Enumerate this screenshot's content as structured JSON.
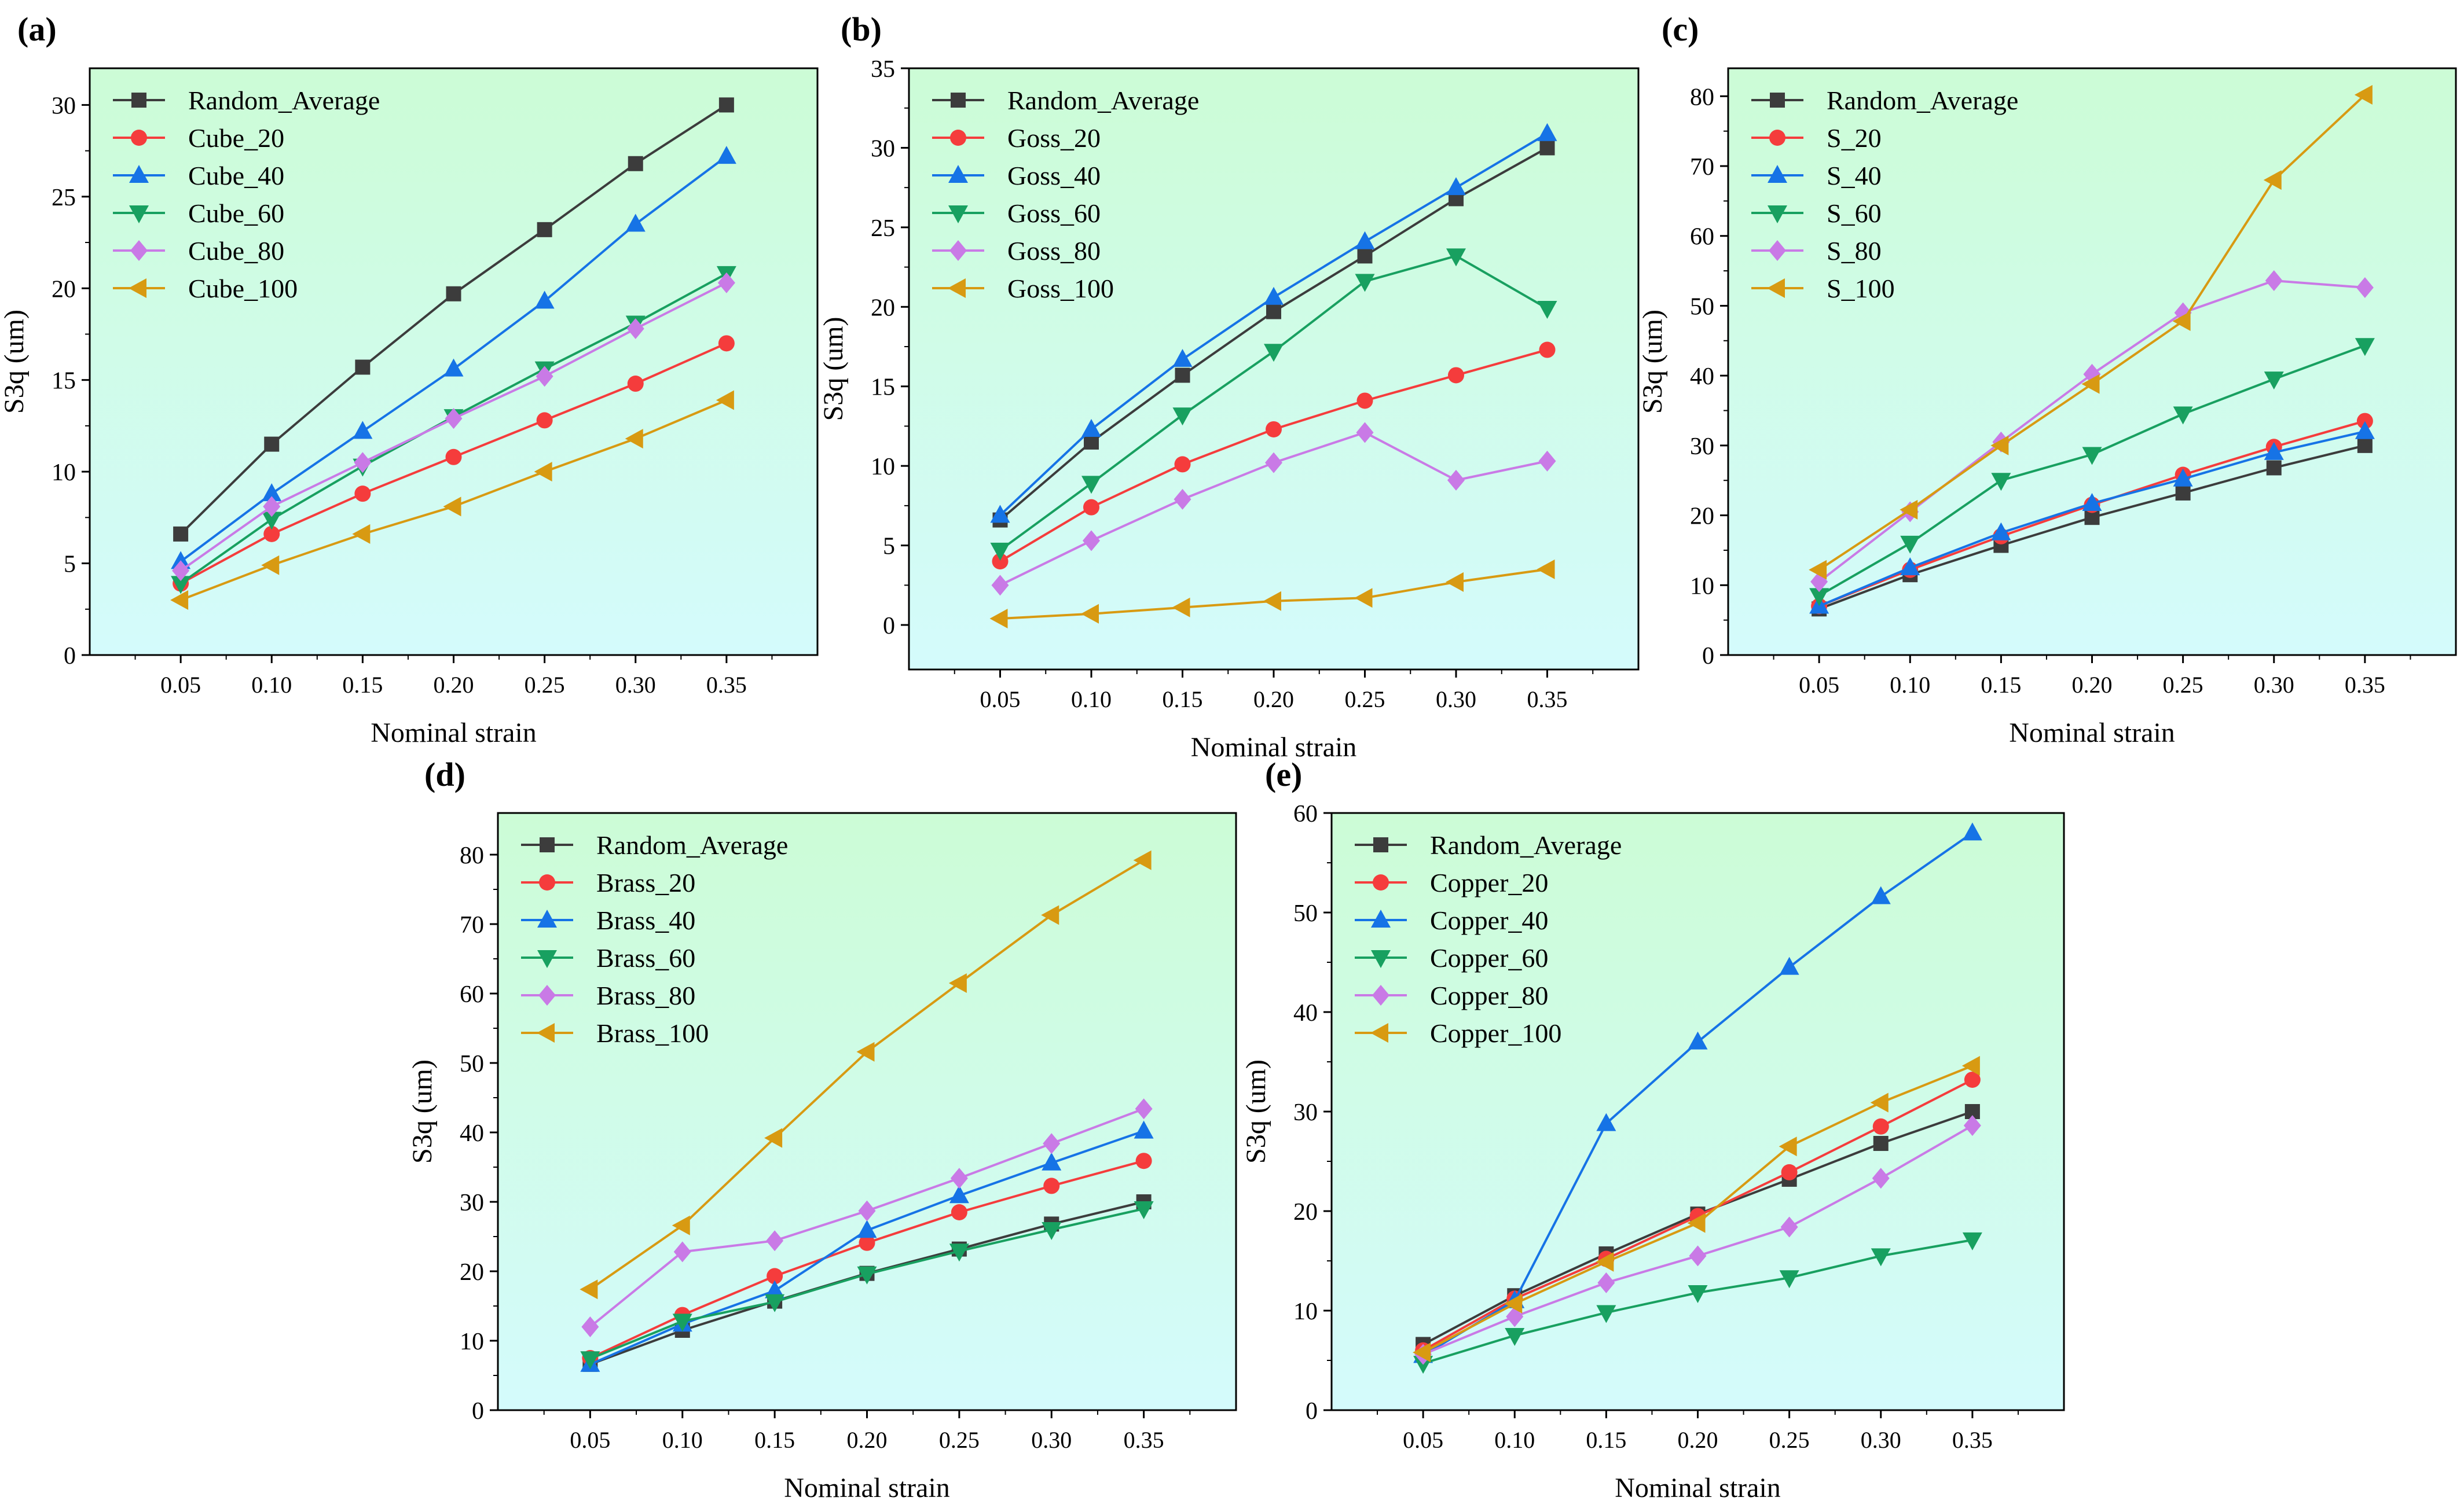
{
  "figure": {
    "series_colors": [
      "#3c3c3c",
      "#f53c3c",
      "#1673e6",
      "#18a060",
      "#c97ae6",
      "#d89a12"
    ],
    "marker_shapes": [
      "square",
      "circle",
      "triangle-up",
      "triangle-down",
      "diamond",
      "triangle-left"
    ]
  },
  "chart_data": [
    {
      "panel_label": "(a)",
      "type": "line",
      "xlabel": "Nominal strain",
      "ylabel": "S3q (um)",
      "x": [
        0.05,
        0.1,
        0.15,
        0.2,
        0.25,
        0.3,
        0.35
      ],
      "x_tick_labels": [
        "0.05",
        "0.10",
        "0.15",
        "0.20",
        "0.25",
        "0.30",
        "0.35"
      ],
      "xlim": [
        0.0,
        0.4
      ],
      "ylim": [
        0,
        32
      ],
      "y_ticks": [
        0,
        5,
        10,
        15,
        20,
        25,
        30
      ],
      "legend_position": "top-left",
      "series": [
        {
          "name": "Random_Average",
          "values": [
            6.6,
            11.5,
            15.7,
            19.7,
            23.2,
            26.8,
            30.0
          ]
        },
        {
          "name": "Cube_20",
          "values": [
            3.9,
            6.6,
            8.8,
            10.8,
            12.8,
            14.8,
            17.0
          ]
        },
        {
          "name": "Cube_40",
          "values": [
            5.1,
            8.8,
            12.2,
            15.6,
            19.3,
            23.5,
            27.2
          ]
        },
        {
          "name": "Cube_60",
          "values": [
            3.9,
            7.4,
            10.3,
            13.0,
            15.6,
            18.1,
            20.8
          ]
        },
        {
          "name": "Cube_80",
          "values": [
            4.6,
            8.1,
            10.5,
            12.9,
            15.2,
            17.8,
            20.3
          ]
        },
        {
          "name": "Cube_100",
          "values": [
            3.0,
            4.9,
            6.6,
            8.1,
            10.0,
            11.8,
            13.9
          ]
        }
      ]
    },
    {
      "panel_label": "(b)",
      "type": "line",
      "xlabel": "Nominal strain",
      "ylabel": "S3q (um)",
      "x": [
        0.05,
        0.1,
        0.15,
        0.2,
        0.25,
        0.3,
        0.35
      ],
      "x_tick_labels": [
        "0.05",
        "0.10",
        "0.15",
        "0.20",
        "0.25",
        "0.30",
        "0.35"
      ],
      "xlim": [
        0.0,
        0.4
      ],
      "ylim": [
        -2.8,
        35
      ],
      "y_ticks": [
        0,
        5,
        10,
        15,
        20,
        25,
        30,
        35
      ],
      "legend_position": "top-left",
      "series": [
        {
          "name": "Random_Average",
          "values": [
            6.6,
            11.5,
            15.7,
            19.7,
            23.2,
            26.8,
            30.0
          ]
        },
        {
          "name": "Goss_20",
          "values": [
            4.0,
            7.4,
            10.1,
            12.3,
            14.1,
            15.7,
            17.3
          ]
        },
        {
          "name": "Goss_40",
          "values": [
            6.9,
            12.3,
            16.7,
            20.6,
            24.1,
            27.5,
            30.9
          ]
        },
        {
          "name": "Goss_60",
          "values": [
            4.7,
            8.9,
            13.2,
            17.2,
            21.6,
            23.2,
            19.9
          ]
        },
        {
          "name": "Goss_80",
          "values": [
            2.5,
            5.3,
            7.9,
            10.2,
            12.1,
            9.1,
            10.3
          ]
        },
        {
          "name": "Goss_100",
          "values": [
            0.4,
            0.7,
            1.1,
            1.5,
            1.7,
            2.7,
            3.5
          ]
        }
      ]
    },
    {
      "panel_label": "(c)",
      "type": "line",
      "xlabel": "Nominal strain",
      "ylabel": "S3q (um)",
      "x": [
        0.05,
        0.1,
        0.15,
        0.2,
        0.25,
        0.3,
        0.35
      ],
      "x_tick_labels": [
        "0.05",
        "0.10",
        "0.15",
        "0.20",
        "0.25",
        "0.30",
        "0.35"
      ],
      "xlim": [
        0.0,
        0.4
      ],
      "ylim": [
        0,
        84
      ],
      "y_ticks": [
        0,
        10,
        20,
        30,
        40,
        50,
        60,
        70,
        80
      ],
      "legend_position": "top-left",
      "series": [
        {
          "name": "Random_Average",
          "values": [
            6.6,
            11.5,
            15.7,
            19.7,
            23.2,
            26.8,
            30.0
          ]
        },
        {
          "name": "S_20",
          "values": [
            7.0,
            12.2,
            17.0,
            21.5,
            25.8,
            29.8,
            33.5
          ]
        },
        {
          "name": "S_40",
          "values": [
            7.0,
            12.5,
            17.5,
            21.7,
            25.2,
            29.0,
            32.0
          ]
        },
        {
          "name": "S_60",
          "values": [
            8.5,
            16.0,
            25.0,
            28.7,
            34.5,
            39.5,
            44.3
          ]
        },
        {
          "name": "S_80",
          "values": [
            10.5,
            20.5,
            30.5,
            40.2,
            49.0,
            53.6,
            52.6
          ]
        },
        {
          "name": "S_100",
          "values": [
            12.2,
            20.8,
            30.0,
            38.8,
            47.8,
            68.0,
            80.2
          ]
        }
      ]
    },
    {
      "panel_label": "(d)",
      "type": "line",
      "xlabel": "Nominal strain",
      "ylabel": "S3q (um)",
      "x": [
        0.05,
        0.1,
        0.15,
        0.2,
        0.25,
        0.3,
        0.35
      ],
      "x_tick_labels": [
        "0.05",
        "0.10",
        "0.15",
        "0.20",
        "0.25",
        "0.30",
        "0.35"
      ],
      "xlim": [
        0.0,
        0.4
      ],
      "ylim": [
        0,
        86
      ],
      "y_ticks": [
        0,
        10,
        20,
        30,
        40,
        50,
        60,
        70,
        80
      ],
      "legend_position": "top-left",
      "series": [
        {
          "name": "Random_Average",
          "values": [
            6.6,
            11.5,
            15.7,
            19.7,
            23.2,
            26.8,
            30.0
          ]
        },
        {
          "name": "Brass_20",
          "values": [
            7.5,
            13.7,
            19.3,
            24.1,
            28.5,
            32.3,
            35.9
          ]
        },
        {
          "name": "Brass_40",
          "values": [
            6.6,
            12.4,
            17.2,
            25.9,
            30.9,
            35.6,
            40.2
          ]
        },
        {
          "name": "Brass_60",
          "values": [
            7.4,
            12.8,
            15.6,
            19.6,
            22.9,
            26.0,
            29.0
          ]
        },
        {
          "name": "Brass_80",
          "values": [
            12.0,
            22.8,
            24.4,
            28.7,
            33.4,
            38.4,
            43.4
          ]
        },
        {
          "name": "Brass_100",
          "values": [
            17.4,
            26.6,
            39.2,
            51.6,
            61.5,
            71.3,
            79.2
          ]
        }
      ]
    },
    {
      "panel_label": "(e)",
      "type": "line",
      "xlabel": "Nominal strain",
      "ylabel": "S3q (um)",
      "x": [
        0.05,
        0.1,
        0.15,
        0.2,
        0.25,
        0.3,
        0.35
      ],
      "x_tick_labels": [
        "0.05",
        "0.10",
        "0.15",
        "0.20",
        "0.25",
        "0.30",
        "0.35"
      ],
      "xlim": [
        0.0,
        0.4
      ],
      "ylim": [
        0,
        60
      ],
      "y_ticks": [
        0,
        10,
        20,
        30,
        40,
        50,
        60
      ],
      "legend_position": "top-left",
      "series": [
        {
          "name": "Random_Average",
          "values": [
            6.6,
            11.5,
            15.7,
            19.7,
            23.2,
            26.8,
            30.0
          ]
        },
        {
          "name": "Copper_20",
          "values": [
            6.0,
            11.2,
            15.2,
            19.5,
            23.9,
            28.5,
            33.2
          ]
        },
        {
          "name": "Copper_40",
          "values": [
            5.5,
            11.0,
            28.8,
            37.0,
            44.5,
            51.6,
            58.0
          ]
        },
        {
          "name": "Copper_60",
          "values": [
            4.7,
            7.5,
            9.8,
            11.8,
            13.3,
            15.5,
            17.1
          ]
        },
        {
          "name": "Copper_80",
          "values": [
            5.6,
            9.4,
            12.8,
            15.5,
            18.4,
            23.3,
            28.6
          ]
        },
        {
          "name": "Copper_100",
          "values": [
            5.8,
            10.7,
            14.9,
            18.8,
            26.5,
            30.9,
            34.6
          ]
        }
      ]
    }
  ]
}
